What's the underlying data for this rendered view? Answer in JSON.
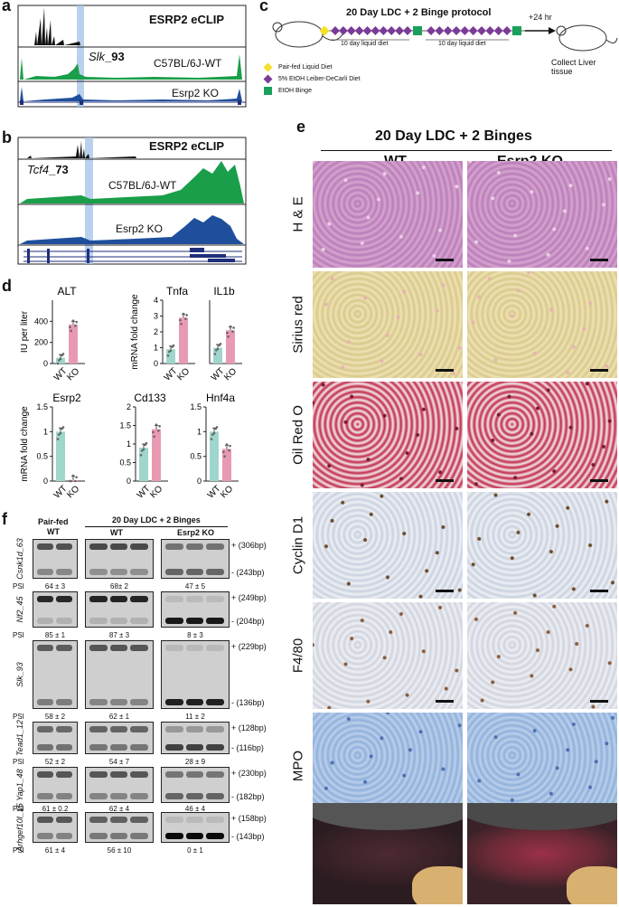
{
  "panel_letters": [
    "a",
    "b",
    "c",
    "d",
    "e",
    "f"
  ],
  "panel_a": {
    "eclip_label": "ESRP2 eCLIP",
    "gene_label": "Slk",
    "gene_suffix": "_93",
    "track_wt": "C57BL/6J-WT",
    "track_ko": "Esrp2 KO",
    "colors": {
      "eclip": "#111111",
      "wt": "#1a9e49",
      "ko": "#1f4f9c",
      "highlight": "#a9c5ea"
    }
  },
  "panel_b": {
    "eclip_label": "ESRP2 eCLIP",
    "gene_label": "Tcf4",
    "gene_suffix": "_73",
    "track_wt": "C57BL/6J-WT",
    "track_ko": "Esrp2 KO"
  },
  "panel_c": {
    "title": "20 Day LDC + 2 Binge protocol",
    "segment_label_1": "10 day liquid diet",
    "segment_label_2": "10 day liquid diet",
    "after_label": "+24 hr",
    "collect_label": "Collect Liver tissue",
    "legend": [
      {
        "label": "Pair-fed Liquid Diet",
        "color": "#f5e02a",
        "shape": "diamond"
      },
      {
        "label": "5% EtOH Leiber-DeCarli Diet",
        "color": "#7a3c96",
        "shape": "diamond"
      },
      {
        "label": "EtOH Binge",
        "color": "#1aa05a",
        "shape": "square"
      }
    ]
  },
  "panel_d": {
    "colors": {
      "wt": "#9fd6cc",
      "ko": "#e99ab3"
    },
    "chart_data": [
      {
        "type": "bar",
        "title": "ALT",
        "ylabel": "IU per liter",
        "categories": [
          "WT",
          "KO"
        ],
        "values": [
          55,
          370
        ],
        "ylim": [
          0,
          600
        ],
        "yticks": [
          0,
          200,
          400
        ]
      },
      {
        "type": "bar",
        "title": "Tnfa",
        "ylabel": "mRNA fold change",
        "categories": [
          "WT",
          "KO"
        ],
        "values": [
          0.9,
          2.9
        ],
        "ylim": [
          0,
          4
        ],
        "yticks": [
          0,
          1,
          2,
          3,
          4
        ]
      },
      {
        "type": "bar",
        "title": "IL1b",
        "ylabel": "",
        "categories": [
          "WT",
          "KO"
        ],
        "values": [
          1.0,
          2.1
        ],
        "ylim": [
          0,
          4
        ],
        "yticks": []
      },
      {
        "type": "bar",
        "title": "Esrp2",
        "ylabel": "mRNA fold change",
        "categories": [
          "WT",
          "KO"
        ],
        "values": [
          1.0,
          0.02
        ],
        "ylim": [
          0,
          1.5
        ],
        "yticks": [
          0.0,
          0.5,
          1.0,
          1.5
        ]
      },
      {
        "type": "bar",
        "title": "Cd133",
        "ylabel": "",
        "categories": [
          "WT",
          "KO"
        ],
        "values": [
          0.9,
          1.4
        ],
        "ylim": [
          0,
          2
        ],
        "yticks": [
          0.0,
          0.5,
          1.0,
          1.5,
          2.0
        ]
      },
      {
        "type": "bar",
        "title": "Hnf4a",
        "ylabel": "",
        "categories": [
          "WT",
          "KO"
        ],
        "values": [
          1.0,
          0.65
        ],
        "ylim": [
          0,
          1.5
        ],
        "yticks": [
          0.0,
          0.5,
          1.0,
          1.5
        ]
      }
    ]
  },
  "panel_e": {
    "title": "20 Day LDC + 2 Binges",
    "col_wt": "WT",
    "col_ko": "Esrp2 KO",
    "rows": [
      "H & E",
      "Sirius red",
      "Oil Red O",
      "Cyclin D1",
      "F4/80",
      "MPO"
    ]
  },
  "panel_f": {
    "header_pairfed": "Pair-fed",
    "header_pairfed_wt": "WT",
    "header_ldc": "20 Day LDC + 2 Binges",
    "header_wt": "WT",
    "header_ko": "Esrp2 KO",
    "psi_label": "PSI",
    "genes": [
      {
        "name": "Csnk1d_63",
        "upper": "+ (306bp)",
        "lower": "- (243bp)",
        "psi": [
          "64 ± 3",
          "68± 2",
          "47 ± 5"
        ]
      },
      {
        "name": "Nf2_45",
        "upper": "+ (249bp)",
        "lower": "- (204bp)",
        "psi": [
          "85 ± 1",
          "87 ± 3",
          "8 ± 3"
        ]
      },
      {
        "name": "Slk_93",
        "upper": "+ (229bp)",
        "lower": "- (136bp)",
        "psi": [
          "58 ± 2",
          "62 ± 1",
          "11 ± 2"
        ]
      },
      {
        "name": "Tead1_12",
        "upper": "+ (128bp)",
        "lower": "- (116bp)",
        "psi": [
          "52 ± 2",
          "54 ± 7",
          "28 ± 9"
        ]
      },
      {
        "name": "Yap1_48",
        "upper": "+ (230bp)",
        "lower": "- (182bp)",
        "psi": [
          "61 ± 0.2",
          "62 ± 4",
          "46 ± 4"
        ]
      },
      {
        "name": "Arhgef10l_15",
        "upper": "+ (158bp)",
        "lower": "- (143bp)",
        "psi": [
          "61 ± 4",
          "56 ± 10",
          "0 ± 1"
        ]
      }
    ]
  }
}
